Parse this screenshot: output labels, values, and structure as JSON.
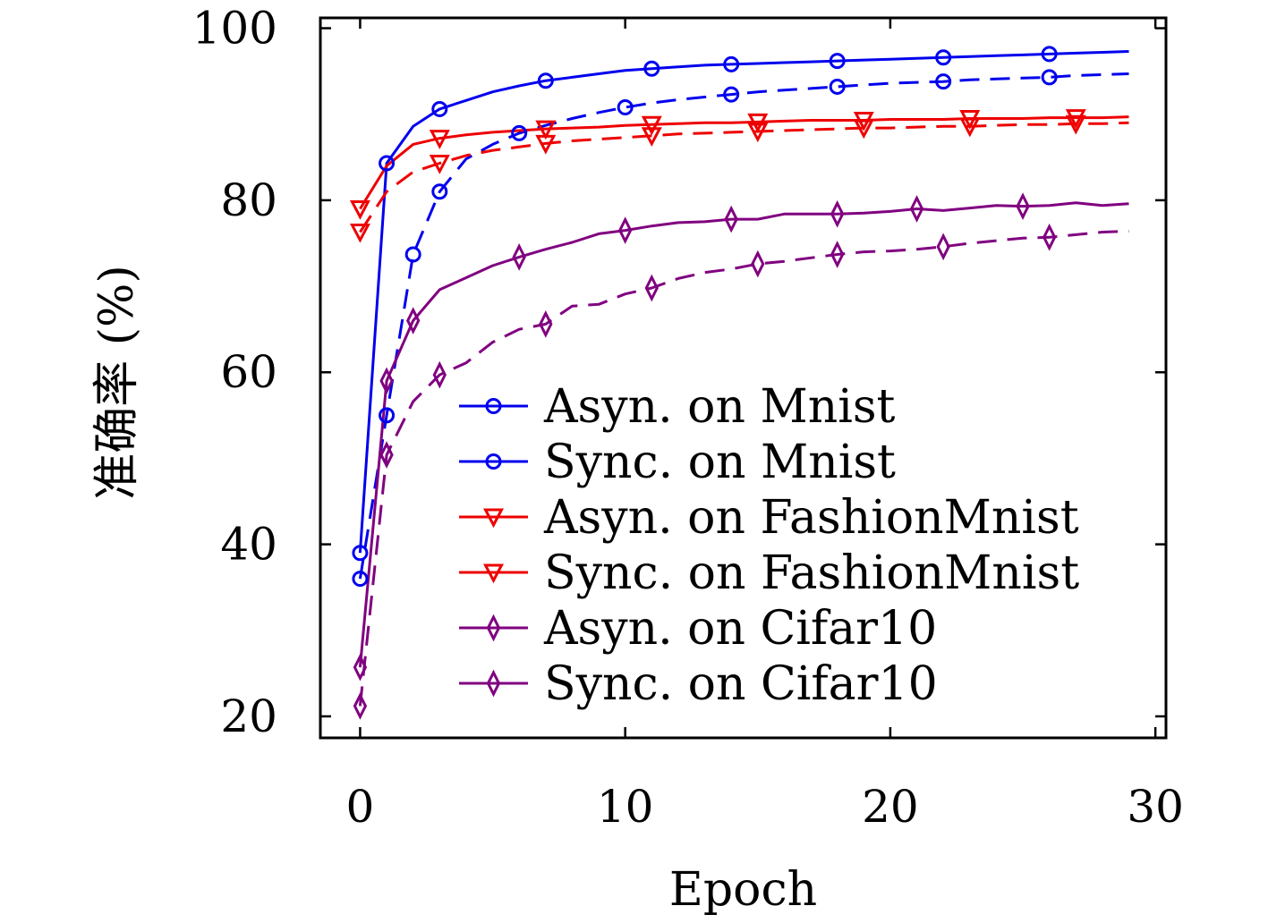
{
  "chart_data": {
    "type": "line",
    "xlabel": "Epoch",
    "ylabel": "准确率 (%)",
    "xlim": [
      -1.5,
      30.4
    ],
    "ylim": [
      17.5,
      101.2
    ],
    "xticks": [
      0,
      10,
      20,
      30
    ],
    "yticks": [
      20,
      40,
      60,
      80,
      100
    ],
    "grid": false,
    "legend_position": "lower-right",
    "series": [
      {
        "name": "Asyn. on Mnist",
        "color": "#0000ee",
        "dash": "solid",
        "marker": "circle",
        "x": [
          0,
          1,
          2,
          3,
          4,
          5,
          6,
          7,
          8,
          9,
          10,
          11,
          12,
          13,
          14,
          15,
          16,
          17,
          18,
          19,
          20,
          21,
          22,
          23,
          24,
          25,
          26,
          27,
          28,
          29
        ],
        "y": [
          39,
          84.3,
          88.6,
          90.6,
          91.6,
          92.6,
          93.3,
          93.9,
          94.3,
          94.7,
          95.1,
          95.3,
          95.5,
          95.7,
          95.8,
          95.9,
          96.0,
          96.1,
          96.2,
          96.3,
          96.4,
          96.5,
          96.6,
          96.7,
          96.8,
          96.9,
          97.0,
          97.1,
          97.2,
          97.3
        ],
        "marker_x": [
          0,
          1,
          3,
          7,
          11,
          14,
          18,
          22,
          26
        ]
      },
      {
        "name": "Sync. on Mnist",
        "color": "#0000ee",
        "dash": "dashed",
        "marker": "circle",
        "x": [
          0,
          1,
          2,
          3,
          4,
          5,
          6,
          7,
          8,
          9,
          10,
          11,
          12,
          13,
          14,
          15,
          16,
          17,
          18,
          19,
          20,
          21,
          22,
          23,
          24,
          25,
          26,
          27,
          28,
          29
        ],
        "y": [
          36,
          55,
          73.7,
          81,
          84.8,
          86.5,
          87.8,
          88.7,
          89.5,
          90.2,
          90.8,
          91.3,
          91.7,
          92.0,
          92.3,
          92.6,
          92.8,
          93.0,
          93.2,
          93.4,
          93.6,
          93.7,
          93.8,
          94.0,
          94.1,
          94.2,
          94.3,
          94.5,
          94.6,
          94.7
        ],
        "marker_x": [
          0,
          1,
          2,
          3,
          6,
          10,
          14,
          18,
          22,
          26
        ]
      },
      {
        "name": "Asyn. on FashionMnist",
        "color": "#ee0000",
        "dash": "solid",
        "marker": "triangle-down",
        "x": [
          0,
          1,
          2,
          3,
          4,
          5,
          6,
          7,
          8,
          9,
          10,
          11,
          12,
          13,
          14,
          15,
          16,
          17,
          18,
          19,
          20,
          21,
          22,
          23,
          24,
          25,
          26,
          27,
          28,
          29
        ],
        "y": [
          79,
          84,
          86.5,
          87.2,
          87.6,
          87.9,
          88.1,
          88.3,
          88.4,
          88.5,
          88.7,
          88.8,
          88.9,
          89.0,
          89.0,
          89.1,
          89.2,
          89.3,
          89.3,
          89.3,
          89.4,
          89.4,
          89.4,
          89.5,
          89.5,
          89.5,
          89.6,
          89.6,
          89.6,
          89.7
        ],
        "marker_x": [
          0,
          3,
          7,
          11,
          15,
          19,
          23,
          27
        ]
      },
      {
        "name": "Sync. on FashionMnist",
        "color": "#ee0000",
        "dash": "dashed",
        "marker": "triangle-down",
        "x": [
          0,
          1,
          2,
          3,
          4,
          5,
          6,
          7,
          8,
          9,
          10,
          11,
          12,
          13,
          14,
          15,
          16,
          17,
          18,
          19,
          20,
          21,
          22,
          23,
          24,
          25,
          26,
          27,
          28,
          29
        ],
        "y": [
          76.3,
          81,
          83.3,
          84.3,
          85.2,
          85.8,
          86.2,
          86.6,
          86.9,
          87.1,
          87.3,
          87.5,
          87.7,
          87.8,
          87.9,
          88.0,
          88.1,
          88.2,
          88.3,
          88.4,
          88.4,
          88.5,
          88.6,
          88.6,
          88.7,
          88.8,
          88.8,
          88.9,
          88.9,
          89.0
        ],
        "marker_x": [
          0,
          3,
          7,
          11,
          15,
          19,
          23,
          27
        ]
      },
      {
        "name": "Asyn. on Cifar10",
        "color": "#800080",
        "dash": "solid",
        "marker": "diamond",
        "x": [
          0,
          1,
          2,
          3,
          4,
          5,
          6,
          7,
          8,
          9,
          10,
          11,
          12,
          13,
          14,
          15,
          16,
          17,
          18,
          19,
          20,
          21,
          22,
          23,
          24,
          25,
          26,
          27,
          28,
          29
        ],
        "y": [
          25.7,
          59,
          66,
          69.6,
          71,
          72.4,
          73.4,
          74.3,
          75.1,
          76.1,
          76.5,
          77,
          77.4,
          77.5,
          77.8,
          77.8,
          78.4,
          78.4,
          78.4,
          78.5,
          78.7,
          79,
          78.8,
          79.1,
          79.4,
          79.3,
          79.4,
          79.7,
          79.4,
          79.6
        ],
        "marker_x": [
          0,
          1,
          2,
          6,
          10,
          14,
          18,
          21,
          25
        ]
      },
      {
        "name": "Sync. on Cifar10",
        "color": "#800080",
        "dash": "dashed",
        "marker": "diamond",
        "x": [
          0,
          1,
          2,
          3,
          4,
          5,
          6,
          7,
          8,
          9,
          10,
          11,
          12,
          13,
          14,
          15,
          16,
          17,
          18,
          19,
          20,
          21,
          22,
          23,
          24,
          25,
          26,
          27,
          28,
          29
        ],
        "y": [
          21.2,
          50.4,
          56.6,
          59.7,
          61.1,
          63.5,
          65.0,
          65.6,
          67.7,
          67.9,
          69.1,
          69.8,
          70.9,
          71.6,
          72.0,
          72.6,
          72.9,
          73.3,
          73.7,
          74.0,
          74.1,
          74.3,
          74.6,
          75.0,
          75.3,
          75.6,
          75.7,
          76.0,
          76.3,
          76.4
        ],
        "marker_x": [
          0,
          1,
          3,
          7,
          11,
          15,
          18,
          22,
          26
        ]
      }
    ]
  }
}
